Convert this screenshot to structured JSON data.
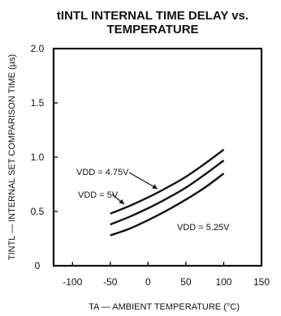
{
  "chart_data": {
    "type": "line",
    "title": "tINTL INTERNAL TIME DELAY vs. TEMPERATURE",
    "title_lines": [
      "tINTL INTERNAL TIME DELAY vs.",
      "TEMPERATURE"
    ],
    "xlabel": "TA — AMBIENT TEMPERATURE (°C)",
    "ylabel": "TINTL — INTERNAL SET COMPARISON TIME (µs)",
    "xlim": [
      -125,
      150
    ],
    "ylim": [
      0,
      2.0
    ],
    "x_ticks": [
      -100,
      -50,
      0,
      50,
      100,
      150
    ],
    "x_tick_labels": [
      "-100",
      "-50",
      "0",
      "50",
      "100",
      "150"
    ],
    "y_ticks": [
      0,
      0.5,
      1.0,
      1.5,
      2.0
    ],
    "y_tick_labels": [
      "0",
      "0.5",
      "1.0",
      "1.5",
      "2.0"
    ],
    "grid": false,
    "series": [
      {
        "name": "VDD = 4.75V",
        "x": [
          -50,
          -25,
          0,
          25,
          50,
          75,
          100
        ],
        "y": [
          0.48,
          0.55,
          0.63,
          0.72,
          0.82,
          0.94,
          1.07
        ]
      },
      {
        "name": "VDD = 5V",
        "x": [
          -50,
          -25,
          0,
          25,
          50,
          75,
          100
        ],
        "y": [
          0.38,
          0.45,
          0.53,
          0.62,
          0.72,
          0.84,
          0.97
        ]
      },
      {
        "name": "VDD = 5.25V",
        "x": [
          -50,
          -25,
          0,
          25,
          50,
          75,
          100
        ],
        "y": [
          0.28,
          0.34,
          0.42,
          0.51,
          0.61,
          0.72,
          0.85
        ]
      }
    ],
    "annotations": [
      {
        "series_index": 0,
        "label": "VDD = 4.75V",
        "point_x": 2,
        "point_y": 0.69,
        "leader": true
      },
      {
        "series_index": 1,
        "label": "VDD = 5V",
        "point_x": -10,
        "point_y": 0.49,
        "leader": true
      },
      {
        "series_index": 2,
        "label": "VDD = 5.25V",
        "point_x": 75,
        "point_y": 0.38,
        "leader": false
      }
    ]
  }
}
